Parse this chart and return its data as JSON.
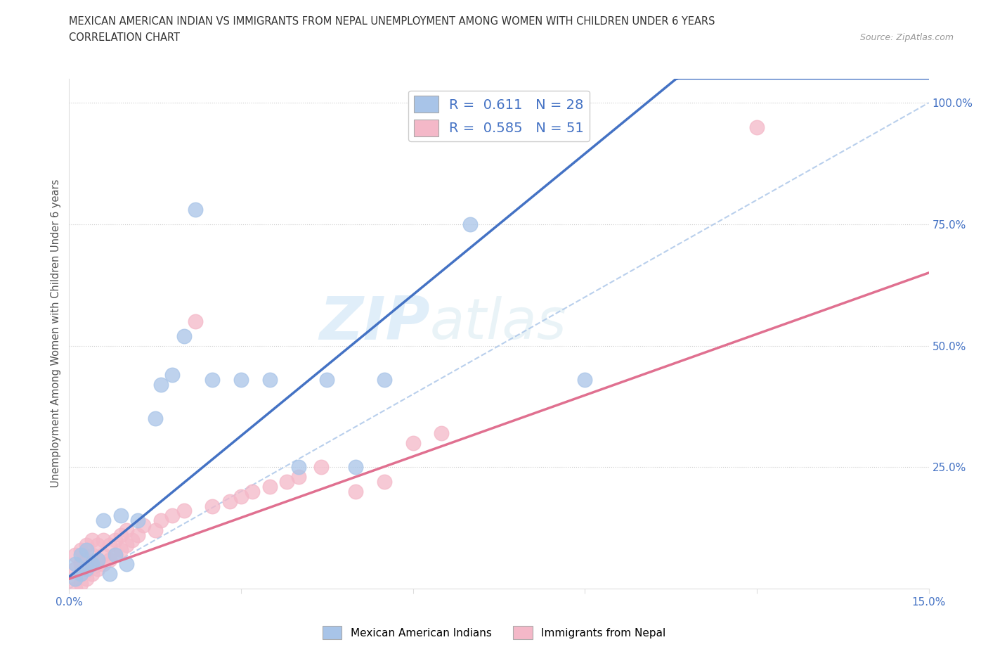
{
  "title_line1": "MEXICAN AMERICAN INDIAN VS IMMIGRANTS FROM NEPAL UNEMPLOYMENT AMONG WOMEN WITH CHILDREN UNDER 6 YEARS",
  "title_line2": "CORRELATION CHART",
  "source": "Source: ZipAtlas.com",
  "ylabel": "Unemployment Among Women with Children Under 6 years",
  "xlim": [
    0,
    0.15
  ],
  "ylim": [
    0,
    1.05
  ],
  "blue_R": 0.611,
  "blue_N": 28,
  "pink_R": 0.585,
  "pink_N": 51,
  "blue_color": "#a8c4e8",
  "pink_color": "#f4b8c8",
  "blue_line_color": "#4472c4",
  "pink_line_color": "#e07090",
  "dashed_line_color": "#a8c4e8",
  "watermark_zip": "ZIP",
  "watermark_atlas": "atlas",
  "background_color": "#ffffff",
  "grid_color": "#cccccc",
  "blue_scatter_x": [
    0.001,
    0.001,
    0.002,
    0.002,
    0.003,
    0.003,
    0.004,
    0.005,
    0.006,
    0.007,
    0.008,
    0.009,
    0.01,
    0.012,
    0.015,
    0.016,
    0.018,
    0.02,
    0.022,
    0.025,
    0.03,
    0.035,
    0.04,
    0.045,
    0.05,
    0.055,
    0.07,
    0.09
  ],
  "blue_scatter_y": [
    0.02,
    0.05,
    0.03,
    0.07,
    0.04,
    0.08,
    0.05,
    0.06,
    0.14,
    0.03,
    0.07,
    0.15,
    0.05,
    0.14,
    0.35,
    0.42,
    0.44,
    0.52,
    0.78,
    0.43,
    0.43,
    0.43,
    0.25,
    0.43,
    0.25,
    0.43,
    0.75,
    0.43
  ],
  "pink_scatter_x": [
    0.001,
    0.001,
    0.001,
    0.001,
    0.002,
    0.002,
    0.002,
    0.002,
    0.003,
    0.003,
    0.003,
    0.003,
    0.004,
    0.004,
    0.004,
    0.004,
    0.005,
    0.005,
    0.005,
    0.006,
    0.006,
    0.006,
    0.007,
    0.007,
    0.008,
    0.008,
    0.009,
    0.009,
    0.01,
    0.01,
    0.011,
    0.012,
    0.013,
    0.015,
    0.016,
    0.018,
    0.02,
    0.022,
    0.025,
    0.028,
    0.03,
    0.032,
    0.035,
    0.038,
    0.04,
    0.044,
    0.05,
    0.055,
    0.06,
    0.065,
    0.12
  ],
  "pink_scatter_y": [
    0.0,
    0.02,
    0.04,
    0.07,
    0.01,
    0.03,
    0.05,
    0.08,
    0.02,
    0.04,
    0.06,
    0.09,
    0.03,
    0.05,
    0.07,
    0.1,
    0.04,
    0.06,
    0.09,
    0.05,
    0.07,
    0.1,
    0.06,
    0.09,
    0.07,
    0.1,
    0.08,
    0.11,
    0.09,
    0.12,
    0.1,
    0.11,
    0.13,
    0.12,
    0.14,
    0.15,
    0.16,
    0.55,
    0.17,
    0.18,
    0.19,
    0.2,
    0.21,
    0.22,
    0.23,
    0.25,
    0.2,
    0.22,
    0.3,
    0.32,
    0.95
  ]
}
